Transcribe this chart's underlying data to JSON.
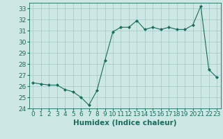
{
  "x": [
    0,
    1,
    2,
    3,
    4,
    5,
    6,
    7,
    8,
    9,
    10,
    11,
    12,
    13,
    14,
    15,
    16,
    17,
    18,
    19,
    20,
    21,
    22,
    23
  ],
  "y": [
    26.3,
    26.2,
    26.1,
    26.1,
    25.7,
    25.5,
    25.0,
    24.3,
    25.6,
    28.3,
    30.9,
    31.3,
    31.3,
    31.9,
    31.1,
    31.3,
    31.1,
    31.3,
    31.1,
    31.1,
    31.5,
    33.2,
    27.5,
    26.8
  ],
  "line_color": "#1a6b5a",
  "marker": "D",
  "marker_size": 2.0,
  "bg_color": "#cde8e4",
  "grid_color": "#aaccc8",
  "xlabel": "Humidex (Indice chaleur)",
  "xlim": [
    -0.5,
    23.5
  ],
  "ylim": [
    24,
    33.5
  ],
  "yticks": [
    24,
    25,
    26,
    27,
    28,
    29,
    30,
    31,
    32,
    33
  ],
  "xticks": [
    0,
    1,
    2,
    3,
    4,
    5,
    6,
    7,
    8,
    9,
    10,
    11,
    12,
    13,
    14,
    15,
    16,
    17,
    18,
    19,
    20,
    21,
    22,
    23
  ],
  "tick_color": "#1a6b5a",
  "label_fontsize": 7.5,
  "tick_fontsize": 6.5
}
